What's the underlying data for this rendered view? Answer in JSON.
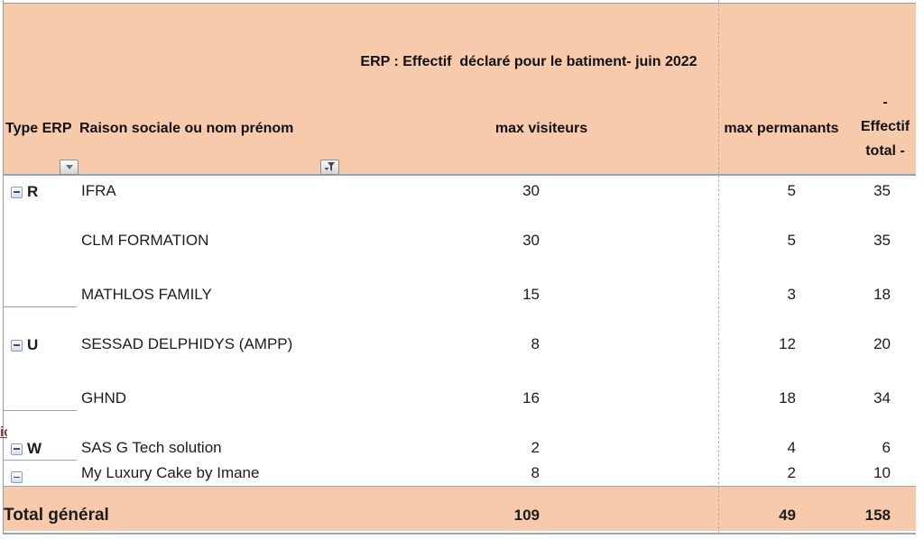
{
  "title": "ERP : Effectif  déclaré pour le batiment- juin 2022",
  "columns": {
    "type_erp": "Type ERP",
    "raison_sociale": "Raison sociale ou nom prénom",
    "max_visiteurs": "max visiteurs",
    "max_permanants": "max permanants",
    "effectif_total": "-\nEffectif\ntotal -"
  },
  "clipped_left_text": "ic",
  "rows": [
    {
      "group": "R",
      "collapse": true,
      "group_end": false,
      "name": "IFRA",
      "visiteurs": "30",
      "permanants": "5",
      "total": "35"
    },
    {
      "group": "",
      "collapse": false,
      "group_end": false,
      "name": "CLM FORMATION",
      "visiteurs": "30",
      "permanants": "5",
      "total": "35"
    },
    {
      "group": "",
      "collapse": false,
      "group_end": true,
      "name": "MATHLOS FAMILY",
      "visiteurs": "15",
      "permanants": "3",
      "total": "18"
    },
    {
      "group": "U",
      "collapse": true,
      "group_end": false,
      "name": "SESSAD DELPHIDYS (AMPP)",
      "visiteurs": "8",
      "permanants": "12",
      "total": "20"
    },
    {
      "group": "",
      "collapse": false,
      "group_end": true,
      "name": "GHND",
      "visiteurs": "16",
      "permanants": "18",
      "total": "34"
    },
    {
      "group": "W",
      "collapse": true,
      "group_end": true,
      "name": "SAS G Tech solution",
      "visiteurs": "2",
      "permanants": "4",
      "total": "6"
    },
    {
      "group": "",
      "collapse": true,
      "group_end": false,
      "name": "My Luxury Cake by Imane",
      "visiteurs": "8",
      "permanants": "2",
      "total": "10"
    }
  ],
  "total": {
    "label": "Total général",
    "visiteurs": "109",
    "permanants": "49",
    "total": "158"
  },
  "colors": {
    "header_bg": "#f7caac",
    "border_blue": "#8ea5d2",
    "grid_gray": "#9a9a9a",
    "pagebreak_gray": "#b0b0b0",
    "text": "#1c1c1c",
    "clipped_text_red": "#943634"
  }
}
